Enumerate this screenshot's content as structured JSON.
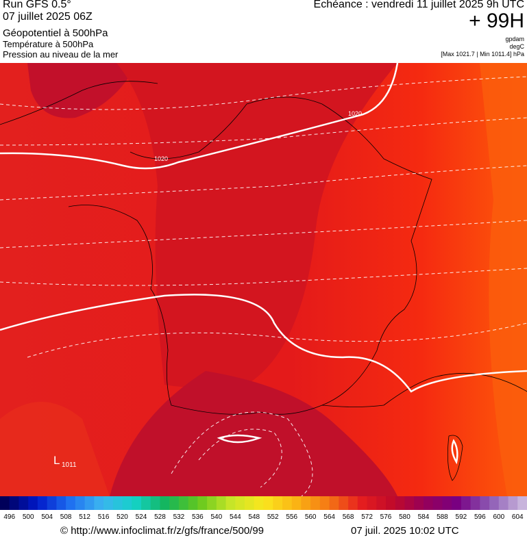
{
  "header": {
    "run": "Run GFS 0.5°",
    "run_date": "07 juillet 2025 06Z",
    "field_1": "Géopotentiel à 500hPa",
    "field_2": "Température à 500hPa",
    "field_3": "Pression au niveau de la mer",
    "valid": "Echéance : vendredi 11 juillet 2025 9h UTC",
    "lead": "+ 99H",
    "unit_1": "gpdam",
    "unit_2": "degC",
    "pressure_range": "[Max 1021.7 | Min 1011.4] hPa"
  },
  "map": {
    "isobar_labels": [
      "1020",
      "1020"
    ],
    "low_symbol": "L",
    "low_value": "1011"
  },
  "colorbar": {
    "labels": [
      "496",
      "500",
      "504",
      "508",
      "512",
      "516",
      "520",
      "524",
      "528",
      "532",
      "536",
      "540",
      "544",
      "548",
      "552",
      "556",
      "560",
      "564",
      "568",
      "572",
      "576",
      "580",
      "584",
      "588",
      "592",
      "596",
      "600",
      "604"
    ]
  },
  "footer": {
    "source": "© http://www.infoclimat.fr/z/gfs/france/500/99",
    "generated": "07 juil. 2025 10:02 UTC"
  }
}
